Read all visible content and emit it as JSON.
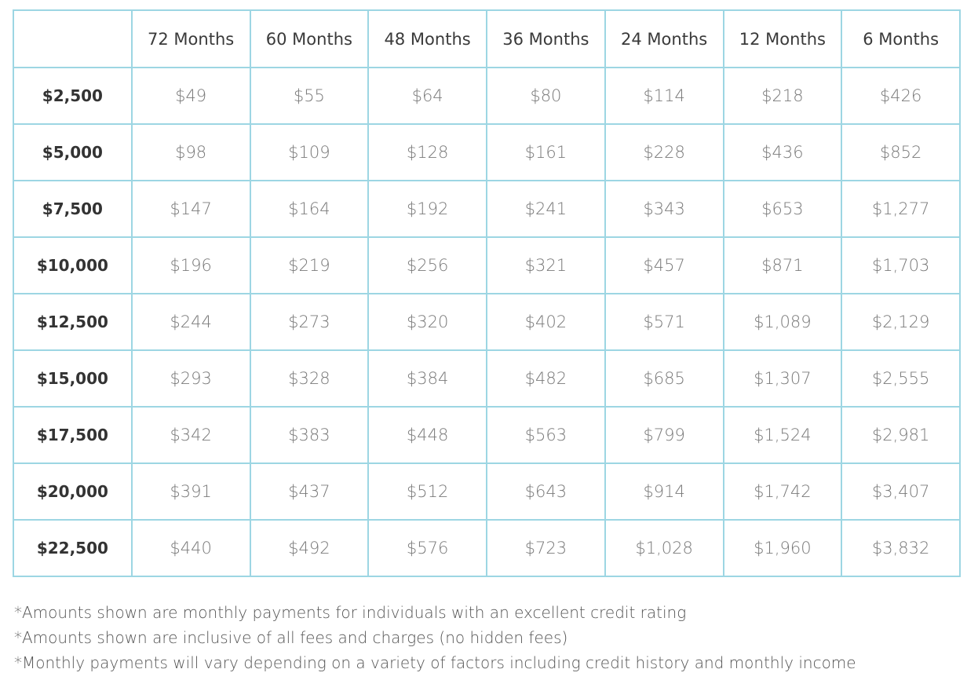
{
  "table": {
    "header": [
      "72 Months",
      "60 Months",
      "48 Months",
      "36 Months",
      "24 Months",
      "12 Months",
      "6 Months"
    ],
    "rows": [
      {
        "label": "$2,500",
        "values": [
          "$49",
          "$55",
          "$64",
          "$80",
          "$114",
          "$218",
          "$426"
        ]
      },
      {
        "label": "$5,000",
        "values": [
          "$98",
          "$109",
          "$128",
          "$161",
          "$228",
          "$436",
          "$852"
        ]
      },
      {
        "label": "$7,500",
        "values": [
          "$147",
          "$164",
          "$192",
          "$241",
          "$343",
          "$653",
          "$1,277"
        ]
      },
      {
        "label": "$10,000",
        "values": [
          "$196",
          "$219",
          "$256",
          "$321",
          "$457",
          "$871",
          "$1,703"
        ]
      },
      {
        "label": "$12,500",
        "values": [
          "$244",
          "$273",
          "$320",
          "$402",
          "$571",
          "$1,089",
          "$2,129"
        ]
      },
      {
        "label": "$15,000",
        "values": [
          "$293",
          "$328",
          "$384",
          "$482",
          "$685",
          "$1,307",
          "$2,555"
        ]
      },
      {
        "label": "$17,500",
        "values": [
          "$342",
          "$383",
          "$448",
          "$563",
          "$799",
          "$1,524",
          "$2,981"
        ]
      },
      {
        "label": "$20,000",
        "values": [
          "$391",
          "$437",
          "$512",
          "$643",
          "$914",
          "$1,742",
          "$3,407"
        ]
      },
      {
        "label": "$22,500",
        "values": [
          "$440",
          "$492",
          "$576",
          "$723",
          "$1,028",
          "$1,960",
          "$3,832"
        ]
      }
    ]
  },
  "footnotes": [
    "*Amounts shown are monthly payments for individuals with an excellent credit rating",
    "*Amounts shown are inclusive of all fees and charges (no hidden fees)",
    "*Monthly payments will vary depending on a variety of factors including credit history and monthly income"
  ]
}
